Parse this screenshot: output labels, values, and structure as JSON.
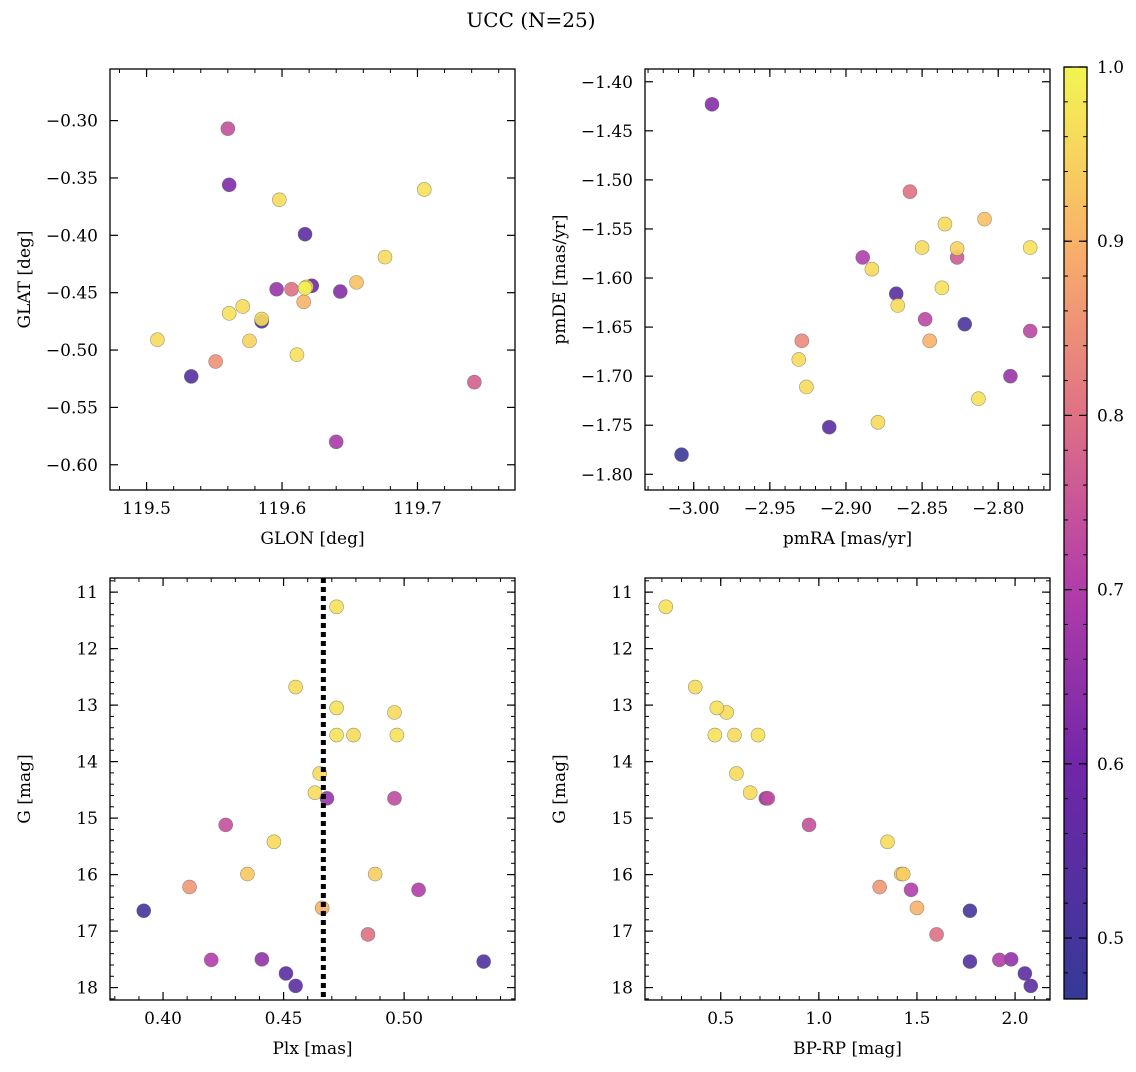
{
  "figure": {
    "title": "UCC (N=25)"
  },
  "colorbar": {
    "min": 0.465,
    "max": 1.0,
    "ticks": [
      0.5,
      0.6,
      0.7,
      0.8,
      0.9,
      1.0
    ]
  },
  "chart_data": [
    {
      "type": "scatter",
      "id": "sky",
      "xlabel": "GLON [deg]",
      "ylabel": "GLAT [deg]",
      "xlim": [
        119.473,
        119.772
      ],
      "ylim": [
        -0.622,
        -0.255
      ],
      "xticks": [
        119.5,
        119.6,
        119.7
      ],
      "xtick_labels": [
        "119.5",
        "119.6",
        "119.7"
      ],
      "yticks": [
        -0.3,
        -0.35,
        -0.4,
        -0.45,
        -0.5,
        -0.55,
        -0.6
      ],
      "ytick_labels": [
        "−0.30",
        "−0.35",
        "−0.40",
        "−0.45",
        "−0.50",
        "−0.55",
        "−0.60"
      ],
      "points": [
        {
          "x": 119.56,
          "y": -0.307,
          "c": 0.74
        },
        {
          "x": 119.561,
          "y": -0.356,
          "c": 0.62
        },
        {
          "x": 119.598,
          "y": -0.369,
          "c": 0.96
        },
        {
          "x": 119.617,
          "y": -0.399,
          "c": 0.55
        },
        {
          "x": 119.705,
          "y": -0.36,
          "c": 0.97
        },
        {
          "x": 119.676,
          "y": -0.419,
          "c": 0.96
        },
        {
          "x": 119.596,
          "y": -0.447,
          "c": 0.66
        },
        {
          "x": 119.607,
          "y": -0.447,
          "c": 0.8
        },
        {
          "x": 119.618,
          "y": -0.445,
          "c": 0.98
        },
        {
          "x": 119.622,
          "y": -0.444,
          "c": 0.6
        },
        {
          "x": 119.643,
          "y": -0.449,
          "c": 0.63
        },
        {
          "x": 119.655,
          "y": -0.441,
          "c": 0.92
        },
        {
          "x": 119.616,
          "y": -0.458,
          "c": 0.9
        },
        {
          "x": 119.617,
          "y": -0.446,
          "c": 0.99
        },
        {
          "x": 119.571,
          "y": -0.462,
          "c": 0.96
        },
        {
          "x": 119.561,
          "y": -0.468,
          "c": 0.97
        },
        {
          "x": 119.585,
          "y": -0.475,
          "c": 0.5
        },
        {
          "x": 119.585,
          "y": -0.473,
          "c": 0.96
        },
        {
          "x": 119.576,
          "y": -0.492,
          "c": 0.95
        },
        {
          "x": 119.508,
          "y": -0.491,
          "c": 0.96
        },
        {
          "x": 119.551,
          "y": -0.51,
          "c": 0.85
        },
        {
          "x": 119.611,
          "y": -0.504,
          "c": 0.97
        },
        {
          "x": 119.533,
          "y": -0.523,
          "c": 0.53
        },
        {
          "x": 119.742,
          "y": -0.528,
          "c": 0.77
        },
        {
          "x": 119.64,
          "y": -0.58,
          "c": 0.69
        }
      ]
    },
    {
      "type": "scatter",
      "id": "pm",
      "xlabel": "pmRA [mas/yr]",
      "ylabel": "pmDE [mas/yr]",
      "xlim": [
        -3.032,
        -2.766
      ],
      "ylim": [
        -1.816,
        -1.387
      ],
      "xticks": [
        -3.0,
        -2.95,
        -2.9,
        -2.85,
        -2.8
      ],
      "xtick_labels": [
        "−3.00",
        "−2.95",
        "−2.90",
        "−2.85",
        "−2.80"
      ],
      "yticks": [
        -1.4,
        -1.45,
        -1.5,
        -1.55,
        -1.6,
        -1.65,
        -1.7,
        -1.75,
        -1.8
      ],
      "ytick_labels": [
        "−1.40",
        "−1.45",
        "−1.50",
        "−1.55",
        "−1.60",
        "−1.65",
        "−1.70",
        "−1.75",
        "−1.80"
      ],
      "points": [
        {
          "x": -2.988,
          "y": -1.423,
          "c": 0.63
        },
        {
          "x": -2.858,
          "y": -1.512,
          "c": 0.8
        },
        {
          "x": -2.835,
          "y": -1.545,
          "c": 0.96
        },
        {
          "x": -2.809,
          "y": -1.54,
          "c": 0.92
        },
        {
          "x": -2.85,
          "y": -1.569,
          "c": 0.96
        },
        {
          "x": -2.827,
          "y": -1.57,
          "c": 0.95
        },
        {
          "x": -2.779,
          "y": -1.569,
          "c": 0.97
        },
        {
          "x": -2.889,
          "y": -1.579,
          "c": 0.7
        },
        {
          "x": -2.827,
          "y": -1.579,
          "c": 0.76
        },
        {
          "x": -2.883,
          "y": -1.591,
          "c": 0.96
        },
        {
          "x": -2.837,
          "y": -1.61,
          "c": 0.97
        },
        {
          "x": -2.867,
          "y": -1.616,
          "c": 0.55
        },
        {
          "x": -2.866,
          "y": -1.628,
          "c": 0.96
        },
        {
          "x": -2.848,
          "y": -1.642,
          "c": 0.72
        },
        {
          "x": -2.822,
          "y": -1.647,
          "c": 0.52
        },
        {
          "x": -2.779,
          "y": -1.654,
          "c": 0.72
        },
        {
          "x": -2.929,
          "y": -1.664,
          "c": 0.84
        },
        {
          "x": -2.845,
          "y": -1.664,
          "c": 0.9
        },
        {
          "x": -2.931,
          "y": -1.683,
          "c": 0.96
        },
        {
          "x": -2.926,
          "y": -1.711,
          "c": 0.96
        },
        {
          "x": -2.792,
          "y": -1.7,
          "c": 0.66
        },
        {
          "x": -2.813,
          "y": -1.723,
          "c": 0.97
        },
        {
          "x": -2.879,
          "y": -1.747,
          "c": 0.96
        },
        {
          "x": -2.911,
          "y": -1.752,
          "c": 0.55
        },
        {
          "x": -3.008,
          "y": -1.78,
          "c": 0.48
        }
      ]
    },
    {
      "type": "scatter",
      "id": "plx",
      "xlabel": "Plx [mas]",
      "ylabel": "G [mag]",
      "xlim": [
        0.378,
        0.546
      ],
      "ylim": [
        18.22,
        10.75
      ],
      "reference_x": 0.4665,
      "xticks": [
        0.4,
        0.45,
        0.5
      ],
      "xtick_labels": [
        "0.40",
        "0.45",
        "0.50"
      ],
      "yticks": [
        11,
        12,
        13,
        14,
        15,
        16,
        17,
        18
      ],
      "ytick_labels": [
        "11",
        "12",
        "13",
        "14",
        "15",
        "16",
        "17",
        "18"
      ],
      "points": [
        {
          "x": 0.472,
          "y": 11.26,
          "c": 0.97
        },
        {
          "x": 0.455,
          "y": 12.68,
          "c": 0.96
        },
        {
          "x": 0.472,
          "y": 13.05,
          "c": 0.97
        },
        {
          "x": 0.496,
          "y": 13.13,
          "c": 0.96
        },
        {
          "x": 0.472,
          "y": 13.53,
          "c": 0.97
        },
        {
          "x": 0.479,
          "y": 13.53,
          "c": 0.96
        },
        {
          "x": 0.497,
          "y": 13.53,
          "c": 0.97
        },
        {
          "x": 0.465,
          "y": 14.21,
          "c": 0.96
        },
        {
          "x": 0.463,
          "y": 14.55,
          "c": 0.96
        },
        {
          "x": 0.468,
          "y": 14.65,
          "c": 0.66
        },
        {
          "x": 0.496,
          "y": 14.65,
          "c": 0.73
        },
        {
          "x": 0.426,
          "y": 15.12,
          "c": 0.74
        },
        {
          "x": 0.446,
          "y": 15.42,
          "c": 0.96
        },
        {
          "x": 0.435,
          "y": 15.99,
          "c": 0.93
        },
        {
          "x": 0.488,
          "y": 15.99,
          "c": 0.94
        },
        {
          "x": 0.411,
          "y": 16.22,
          "c": 0.86
        },
        {
          "x": 0.506,
          "y": 16.27,
          "c": 0.7
        },
        {
          "x": 0.466,
          "y": 16.59,
          "c": 0.9
        },
        {
          "x": 0.392,
          "y": 16.64,
          "c": 0.5
        },
        {
          "x": 0.485,
          "y": 17.06,
          "c": 0.8
        },
        {
          "x": 0.42,
          "y": 17.51,
          "c": 0.7
        },
        {
          "x": 0.441,
          "y": 17.5,
          "c": 0.65
        },
        {
          "x": 0.533,
          "y": 17.54,
          "c": 0.53
        },
        {
          "x": 0.451,
          "y": 17.75,
          "c": 0.55
        },
        {
          "x": 0.455,
          "y": 17.97,
          "c": 0.55
        }
      ]
    },
    {
      "type": "scatter",
      "id": "cmd",
      "xlabel": "BP-RP [mag]",
      "ylabel": "G [mag]",
      "xlim": [
        0.114,
        2.178
      ],
      "ylim": [
        18.22,
        10.75
      ],
      "xticks": [
        0.5,
        1.0,
        1.5,
        2.0
      ],
      "xtick_labels": [
        "0.5",
        "1.0",
        "1.5",
        "2.0"
      ],
      "yticks": [
        11,
        12,
        13,
        14,
        15,
        16,
        17,
        18
      ],
      "ytick_labels": [
        "11",
        "12",
        "13",
        "14",
        "15",
        "16",
        "17",
        "18"
      ],
      "points": [
        {
          "x": 0.22,
          "y": 11.26,
          "c": 0.97
        },
        {
          "x": 0.37,
          "y": 12.68,
          "c": 0.96
        },
        {
          "x": 0.48,
          "y": 13.05,
          "c": 0.97
        },
        {
          "x": 0.53,
          "y": 13.13,
          "c": 0.96
        },
        {
          "x": 0.47,
          "y": 13.53,
          "c": 0.97
        },
        {
          "x": 0.57,
          "y": 13.53,
          "c": 0.96
        },
        {
          "x": 0.69,
          "y": 13.53,
          "c": 0.97
        },
        {
          "x": 0.58,
          "y": 14.21,
          "c": 0.96
        },
        {
          "x": 0.65,
          "y": 14.55,
          "c": 0.96
        },
        {
          "x": 0.73,
          "y": 14.65,
          "c": 0.66
        },
        {
          "x": 0.74,
          "y": 14.65,
          "c": 0.73
        },
        {
          "x": 0.95,
          "y": 15.12,
          "c": 0.74
        },
        {
          "x": 1.35,
          "y": 15.42,
          "c": 0.96
        },
        {
          "x": 1.42,
          "y": 15.99,
          "c": 0.93
        },
        {
          "x": 1.43,
          "y": 15.99,
          "c": 0.94
        },
        {
          "x": 1.31,
          "y": 16.22,
          "c": 0.86
        },
        {
          "x": 1.47,
          "y": 16.27,
          "c": 0.7
        },
        {
          "x": 1.5,
          "y": 16.59,
          "c": 0.9
        },
        {
          "x": 1.77,
          "y": 16.64,
          "c": 0.5
        },
        {
          "x": 1.6,
          "y": 17.06,
          "c": 0.8
        },
        {
          "x": 1.92,
          "y": 17.51,
          "c": 0.7
        },
        {
          "x": 1.98,
          "y": 17.5,
          "c": 0.65
        },
        {
          "x": 1.77,
          "y": 17.54,
          "c": 0.53
        },
        {
          "x": 2.05,
          "y": 17.75,
          "c": 0.55
        },
        {
          "x": 2.08,
          "y": 17.97,
          "c": 0.55
        }
      ]
    }
  ]
}
